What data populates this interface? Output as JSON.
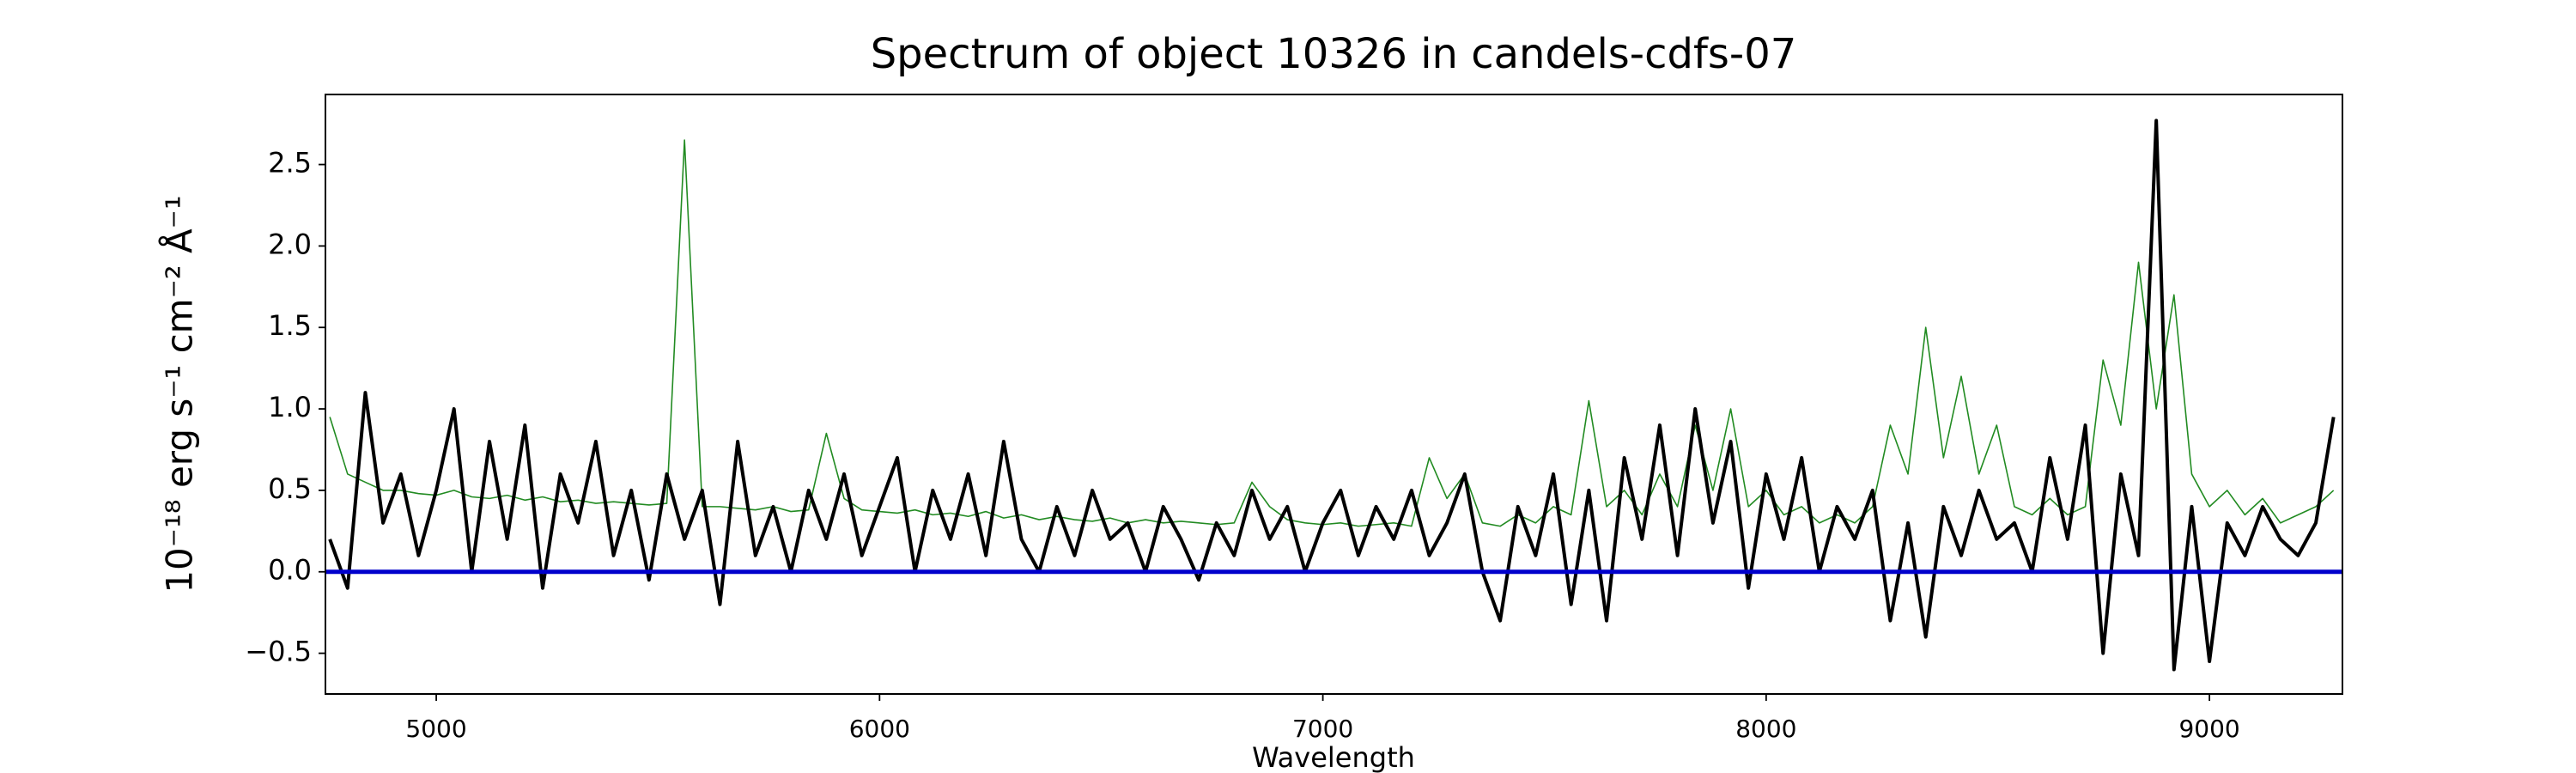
{
  "chart_data": {
    "type": "line",
    "title": "Spectrum of object 10326 in candels-cdfs-07",
    "xlabel": "Wavelength",
    "ylabel": "10⁻¹⁸ erg s⁻¹ cm⁻² Å⁻¹",
    "x": [
      4760,
      4800,
      4840,
      4880,
      4920,
      4960,
      5000,
      5040,
      5080,
      5120,
      5160,
      5200,
      5240,
      5280,
      5320,
      5360,
      5400,
      5440,
      5480,
      5520,
      5560,
      5600,
      5640,
      5680,
      5720,
      5760,
      5800,
      5840,
      5880,
      5920,
      5960,
      6000,
      6040,
      6080,
      6120,
      6160,
      6200,
      6240,
      6280,
      6320,
      6360,
      6400,
      6440,
      6480,
      6520,
      6560,
      6600,
      6640,
      6680,
      6720,
      6760,
      6800,
      6840,
      6880,
      6920,
      6960,
      7000,
      7040,
      7080,
      7120,
      7160,
      7200,
      7240,
      7280,
      7320,
      7360,
      7400,
      7440,
      7480,
      7520,
      7560,
      7600,
      7640,
      7680,
      7720,
      7760,
      7800,
      7840,
      7880,
      7920,
      7960,
      8000,
      8040,
      8080,
      8120,
      8160,
      8200,
      8240,
      8280,
      8320,
      8360,
      8400,
      8440,
      8480,
      8520,
      8560,
      8600,
      8640,
      8680,
      8720,
      8760,
      8800,
      8840,
      8880,
      8920,
      8960,
      9000,
      9040,
      9080,
      9120,
      9160,
      9200,
      9240,
      9280
    ],
    "series": [
      {
        "color": "#000000",
        "values": [
          0.2,
          -0.1,
          1.1,
          0.3,
          0.6,
          0.1,
          0.5,
          1.0,
          0.0,
          0.8,
          0.2,
          0.9,
          -0.1,
          0.6,
          0.3,
          0.8,
          0.1,
          0.5,
          -0.05,
          0.6,
          0.2,
          0.5,
          -0.2,
          0.8,
          0.1,
          0.4,
          0.0,
          0.5,
          0.2,
          0.6,
          0.1,
          0.4,
          0.7,
          0.0,
          0.5,
          0.2,
          0.6,
          0.1,
          0.8,
          0.2,
          0.0,
          0.4,
          0.1,
          0.5,
          0.2,
          0.3,
          0.0,
          0.4,
          0.2,
          -0.05,
          0.3,
          0.1,
          0.5,
          0.2,
          0.4,
          0.0,
          0.3,
          0.5,
          0.1,
          0.4,
          0.2,
          0.5,
          0.1,
          0.3,
          0.6,
          0.0,
          -0.3,
          0.4,
          0.1,
          0.6,
          -0.2,
          0.5,
          -0.3,
          0.7,
          0.2,
          0.9,
          0.1,
          1.0,
          0.3,
          0.8,
          -0.1,
          0.6,
          0.2,
          0.7,
          0.0,
          0.4,
          0.2,
          0.5,
          -0.3,
          0.3,
          -0.4,
          0.4,
          0.1,
          0.5,
          0.2,
          0.3,
          0.0,
          0.7,
          0.2,
          0.9,
          -0.5,
          0.6,
          0.1,
          2.77,
          -0.6,
          0.4,
          -0.55,
          0.3,
          0.1,
          0.4,
          0.2,
          0.1,
          0.3,
          0.95
        ]
      },
      {
        "color": "#228b22",
        "values": [
          0.95,
          0.6,
          0.55,
          0.5,
          0.5,
          0.48,
          0.47,
          0.5,
          0.46,
          0.45,
          0.47,
          0.44,
          0.46,
          0.43,
          0.44,
          0.42,
          0.43,
          0.42,
          0.41,
          0.42,
          2.65,
          0.4,
          0.4,
          0.39,
          0.38,
          0.4,
          0.37,
          0.38,
          0.85,
          0.45,
          0.38,
          0.37,
          0.36,
          0.38,
          0.35,
          0.36,
          0.34,
          0.37,
          0.33,
          0.35,
          0.32,
          0.34,
          0.32,
          0.31,
          0.33,
          0.3,
          0.32,
          0.3,
          0.31,
          0.3,
          0.29,
          0.3,
          0.55,
          0.4,
          0.32,
          0.3,
          0.29,
          0.3,
          0.28,
          0.29,
          0.3,
          0.28,
          0.7,
          0.45,
          0.6,
          0.3,
          0.28,
          0.35,
          0.3,
          0.4,
          0.35,
          1.05,
          0.4,
          0.5,
          0.35,
          0.6,
          0.4,
          0.9,
          0.5,
          1.0,
          0.4,
          0.5,
          0.35,
          0.4,
          0.3,
          0.35,
          0.3,
          0.4,
          0.9,
          0.6,
          1.5,
          0.7,
          1.2,
          0.6,
          0.9,
          0.4,
          0.35,
          0.45,
          0.35,
          0.4,
          1.3,
          0.9,
          1.9,
          1.0,
          1.7,
          0.6,
          0.4,
          0.5,
          0.35,
          0.45,
          0.3,
          0.35,
          0.4,
          0.5
        ]
      }
    ],
    "hline": {
      "value": 0,
      "color": "#0000cc"
    },
    "xlim": [
      4750,
      9300
    ],
    "ylim": [
      -0.75,
      2.93
    ],
    "xticks": [
      5000,
      6000,
      7000,
      8000,
      9000
    ],
    "yticks": [
      {
        "value": -0.5,
        "label": "−0.5"
      },
      {
        "value": 0,
        "label": "0.0"
      },
      0.5,
      {
        "value": 1,
        "label": "1.0"
      },
      1.5,
      {
        "value": 2,
        "label": "2.0"
      },
      2.5
    ],
    "grid": false
  }
}
